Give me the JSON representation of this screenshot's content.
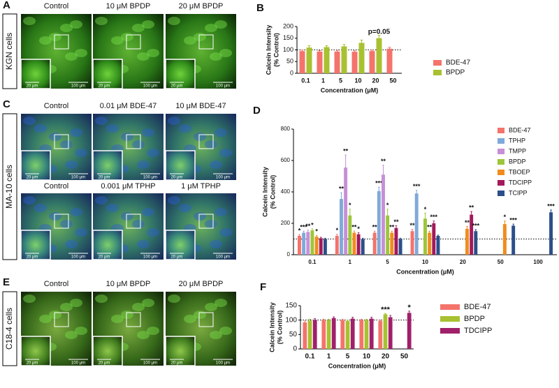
{
  "panels": [
    {
      "letter": "A",
      "cell_line": "KGN cells",
      "rows": [
        [
          {
            "label": "Control",
            "inset_scale": "20 μm",
            "scale": "100 μm"
          },
          {
            "label": "10 μM BPDP",
            "inset_scale": "20 μm",
            "scale": "100 μm"
          },
          {
            "label": "20 μM BPDP",
            "inset_scale": "20 μm",
            "scale": "100 μm"
          }
        ]
      ]
    },
    {
      "letter": "C",
      "cell_line": "MA-10 cells",
      "rows": [
        [
          {
            "label": "Control",
            "inset_scale": "20 μm",
            "scale": "100 μm"
          },
          {
            "label": "0.01 μM BDE-47",
            "inset_scale": "20 μm",
            "scale": "100 μm"
          },
          {
            "label": "10 μM BDE-47",
            "inset_scale": "20 μm",
            "scale": "100 μm"
          }
        ],
        [
          {
            "label": "Control",
            "inset_scale": "20 μm",
            "scale": "100 μm"
          },
          {
            "label": "0.001 μM TPHP",
            "inset_scale": "20 μm",
            "scale": "100 μm"
          },
          {
            "label": "1 μM TPHP",
            "inset_scale": "20 μm",
            "scale": "100 μm"
          }
        ]
      ]
    },
    {
      "letter": "E",
      "cell_line": "C18-4 cells",
      "rows": [
        [
          {
            "label": "Control",
            "inset_scale": "20 μm",
            "scale": "100 μm"
          },
          {
            "label": "10 μM BPDP",
            "inset_scale": "20 μm",
            "scale": "100 μm"
          },
          {
            "label": "20 μM BPDP",
            "inset_scale": "20 μm",
            "scale": "100 μm"
          }
        ]
      ]
    }
  ],
  "chart_data": [
    {
      "type": "bar",
      "panel": "B",
      "ylabel": [
        "Calcein Intensity",
        "(% Control)"
      ],
      "xlabel": "Concentration (μM)",
      "legend": "right",
      "reference_line": 100,
      "categories": [
        "0.1",
        "1",
        "5",
        "10",
        "20",
        "50"
      ],
      "ylim": [
        0,
        200
      ],
      "yticks": [
        0,
        50,
        100,
        150,
        200
      ],
      "series": [
        {
          "name": "BDE-47",
          "color": "#f4736b",
          "values": [
            95,
            93,
            93,
            92,
            95,
            105
          ],
          "errors": [
            5,
            4,
            5,
            4,
            4,
            6
          ],
          "labels": [
            null,
            null,
            null,
            null,
            null,
            null
          ]
        },
        {
          "name": "BPDP",
          "color": "#a8c130",
          "values": [
            110,
            112,
            115,
            130,
            150,
            null
          ],
          "errors": [
            8,
            6,
            8,
            12,
            12,
            null
          ],
          "labels": [
            null,
            null,
            null,
            null,
            "p=0.05",
            null
          ]
        }
      ]
    },
    {
      "type": "bar",
      "panel": "D",
      "ylabel": [
        "Calcein Intensity",
        "(% Control)"
      ],
      "xlabel": "Concentration (μM)",
      "legend": "right",
      "reference_line": 100,
      "categories": [
        "0.1",
        "1",
        "5",
        "10",
        "20",
        "50",
        "100"
      ],
      "ylim": [
        0,
        800
      ],
      "yticks": [
        0,
        200,
        400,
        600,
        800
      ],
      "series": [
        {
          "name": "BDE-47",
          "color": "#f4736b",
          "values": [
            120,
            120,
            140,
            150,
            null,
            null,
            null
          ],
          "errors": [
            8,
            10,
            10,
            12,
            null,
            null,
            null
          ],
          "labels": [
            "*",
            "*",
            "**",
            "**",
            null,
            null,
            null
          ]
        },
        {
          "name": "TPHP",
          "color": "#7fa9d9",
          "values": [
            140,
            355,
            405,
            390,
            null,
            null,
            null
          ],
          "errors": [
            10,
            40,
            25,
            20,
            null,
            null,
            null
          ],
          "labels": [
            "***",
            "**",
            "***",
            "***",
            null,
            null,
            null
          ]
        },
        {
          "name": "TMPP",
          "color": "#c78fd6",
          "values": [
            145,
            555,
            510,
            null,
            null,
            null,
            null
          ],
          "errors": [
            12,
            80,
            60,
            null,
            null,
            null,
            null
          ],
          "labels": [
            "**",
            "**",
            "**",
            null,
            null,
            null,
            null
          ]
        },
        {
          "name": "BPDP",
          "color": "#9cc63a",
          "values": [
            155,
            250,
            250,
            230,
            null,
            null,
            null
          ],
          "errors": [
            10,
            40,
            40,
            35,
            null,
            null,
            null
          ],
          "labels": [
            "*",
            "*",
            "*",
            "*",
            null,
            null,
            null
          ]
        },
        {
          "name": "TBOEP",
          "color": "#f08c1e",
          "values": [
            115,
            140,
            140,
            140,
            165,
            195,
            null
          ],
          "errors": [
            8,
            10,
            10,
            10,
            15,
            20,
            null
          ],
          "labels": [
            "*",
            "**",
            "**",
            "**",
            "**",
            "*",
            null
          ]
        },
        {
          "name": "TDCIPP",
          "color": "#a3195b",
          "values": [
            105,
            130,
            170,
            200,
            255,
            null,
            null
          ],
          "errors": [
            6,
            10,
            15,
            15,
            20,
            null,
            null
          ],
          "labels": [
            null,
            "*",
            "**",
            "***",
            "**",
            null,
            null
          ]
        },
        {
          "name": "TCIPP",
          "color": "#2c4e8a",
          "values": [
            100,
            100,
            100,
            120,
            150,
            185,
            270
          ],
          "errors": [
            5,
            5,
            5,
            5,
            10,
            10,
            15
          ],
          "labels": [
            null,
            null,
            null,
            null,
            "***",
            "***",
            "***"
          ]
        }
      ]
    },
    {
      "type": "bar",
      "panel": "F",
      "ylabel": [
        "Calcein Intensity",
        "(% Control)"
      ],
      "xlabel": "Concentration (μM)",
      "legend": "right",
      "reference_line": 100,
      "categories": [
        "0.1",
        "1",
        "5",
        "10",
        "20",
        "50"
      ],
      "ylim": [
        0,
        150
      ],
      "yticks": [
        0,
        50,
        100,
        150
      ],
      "series": [
        {
          "name": "BDE-47",
          "color": "#f4736b",
          "values": [
            92,
            100,
            100,
            100,
            97,
            null
          ],
          "errors": [
            5,
            3,
            3,
            3,
            3,
            null
          ],
          "labels": [
            null,
            null,
            null,
            null,
            null,
            null
          ]
        },
        {
          "name": "BPDP",
          "color": "#a8c130",
          "values": [
            98,
            100,
            97,
            100,
            120,
            null
          ],
          "errors": [
            5,
            3,
            3,
            3,
            3,
            null
          ],
          "labels": [
            null,
            null,
            null,
            null,
            "***",
            null
          ]
        },
        {
          "name": "TDCIPP",
          "color": "#a0206a",
          "values": [
            100,
            107,
            105,
            105,
            110,
            125
          ],
          "errors": [
            5,
            4,
            5,
            5,
            6,
            6
          ],
          "labels": [
            null,
            null,
            null,
            null,
            null,
            "*"
          ]
        }
      ]
    }
  ]
}
